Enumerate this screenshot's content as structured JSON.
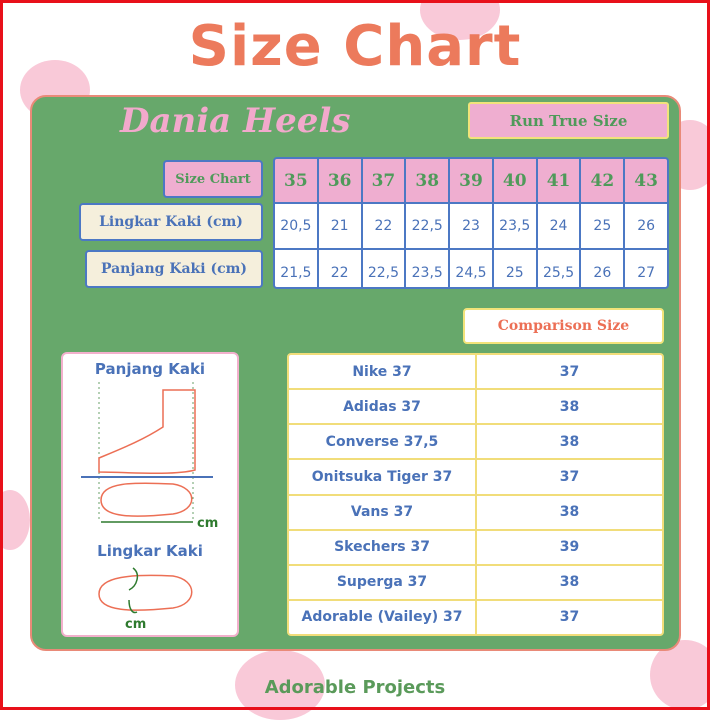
{
  "title": "Size Chart",
  "brand": "Dania Heels",
  "badge": "Run True Size",
  "size_table": {
    "corner_label": "Size Chart",
    "sizes": [
      "35",
      "36",
      "37",
      "38",
      "39",
      "40",
      "41",
      "42",
      "43"
    ],
    "rows": [
      {
        "label": "Lingkar Kaki (cm)",
        "values": [
          "20,5",
          "21",
          "22",
          "22,5",
          "23",
          "23,5",
          "24",
          "25",
          "26"
        ]
      },
      {
        "label": "Panjang Kaki (cm)",
        "values": [
          "21,5",
          "22",
          "22,5",
          "23,5",
          "24,5",
          "25",
          "25,5",
          "26",
          "27"
        ]
      }
    ]
  },
  "comparison": {
    "title": "Comparison Size",
    "rows": [
      {
        "brand": "Nike 37",
        "size": "37"
      },
      {
        "brand": "Adidas 37",
        "size": "38"
      },
      {
        "brand": "Converse 37,5",
        "size": "38"
      },
      {
        "brand": "Onitsuka Tiger 37",
        "size": "37"
      },
      {
        "brand": "Vans 37",
        "size": "38"
      },
      {
        "brand": "Skechers 37",
        "size": "39"
      },
      {
        "brand": "Superga 37",
        "size": "38"
      },
      {
        "brand": "Adorable (Vailey) 37",
        "size": "37"
      }
    ]
  },
  "guide": {
    "length_title": "Panjang Kaki",
    "girth_title": "Lingkar Kaki",
    "unit": "cm"
  },
  "footer": "Adorable Projects",
  "colors": {
    "title": "#ec7a5c",
    "panel": "#67a86b",
    "pink": "#efaed0",
    "blue": "#4a72b8",
    "yellow": "#f1dd7a"
  }
}
